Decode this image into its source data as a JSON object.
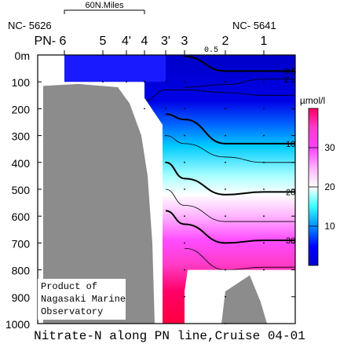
{
  "chart_data": {
    "type": "heatmap",
    "title": "Nitrate-N along PN line,Cruise 04-01",
    "subtitle": "",
    "xlabel": "",
    "ylabel": "",
    "units": "µmol/l",
    "y_axis": {
      "lim": [
        1000,
        0
      ],
      "ticks": [
        {
          "v": 0,
          "label": "0m"
        },
        {
          "v": 100,
          "label": "100"
        },
        {
          "v": 200,
          "label": "200"
        },
        {
          "v": 300,
          "label": "300"
        },
        {
          "v": 400,
          "label": "400"
        },
        {
          "v": 500,
          "label": "500"
        },
        {
          "v": 600,
          "label": "600"
        },
        {
          "v": 700,
          "label": "700"
        },
        {
          "v": 800,
          "label": "800"
        },
        {
          "v": 900,
          "label": "900"
        },
        {
          "v": 1000,
          "label": "1000"
        }
      ]
    },
    "stations": [
      {
        "label": "PN- 6",
        "depth": 90
      },
      {
        "label": "5",
        "depth": 100
      },
      {
        "label": "4'",
        "depth": 100
      },
      {
        "label": "4",
        "depth": 260
      },
      {
        "label": "3'",
        "depth": 480
      },
      {
        "label": "3",
        "depth": 900
      },
      {
        "label": "2",
        "depth": 1000
      },
      {
        "label": "1",
        "depth": 800
      }
    ],
    "station_ids": {
      "west": "NC- 5626",
      "east": "NC- 5641"
    },
    "scale_bar_label": "60N.Miles",
    "contours": [
      {
        "value": 0.5,
        "label": "0.5",
        "depths": [
          null,
          null,
          null,
          null,
          null,
          5,
          60,
          60
        ],
        "major": true
      },
      {
        "value": 2,
        "label": "2",
        "depths": [
          null,
          null,
          null,
          null,
          null,
          120,
          110,
          90
        ],
        "major": false
      },
      {
        "value": 5,
        "label": "",
        "depths": [
          null,
          null,
          null,
          170,
          130,
          130,
          140,
          150
        ],
        "major": false
      },
      {
        "value": 10,
        "label": "10",
        "depths": [
          null,
          null,
          null,
          null,
          220,
          240,
          330,
          330
        ],
        "major": true
      },
      {
        "value": 15,
        "label": "",
        "depths": [
          null,
          null,
          null,
          null,
          300,
          330,
          380,
          400
        ],
        "major": false
      },
      {
        "value": 20,
        "label": "20",
        "depths": [
          null,
          null,
          null,
          null,
          400,
          460,
          520,
          510
        ],
        "major": true
      },
      {
        "value": 25,
        "label": "",
        "depths": [
          null,
          null,
          null,
          null,
          500,
          560,
          620,
          620
        ],
        "major": false
      },
      {
        "value": 30,
        "label": "30",
        "depths": [
          null,
          null,
          null,
          null,
          580,
          630,
          700,
          690
        ],
        "major": true
      },
      {
        "value": 35,
        "label": "",
        "depths": [
          null,
          null,
          null,
          null,
          null,
          720,
          800,
          790
        ],
        "major": false
      }
    ],
    "colorbar": {
      "units_label": "µmol/l",
      "ticks": [
        {
          "v": 10,
          "label": "10"
        },
        {
          "v": 20,
          "label": "20"
        },
        {
          "v": 30,
          "label": "30"
        }
      ],
      "range": [
        0,
        40
      ],
      "colors": [
        "#0000c8",
        "#0050ff",
        "#00c8ff",
        "#96ffff",
        "#ffffff",
        "#ffb4ff",
        "#ff50ff",
        "#ff3cc8",
        "#ff0064"
      ]
    }
  },
  "credit": {
    "line1": "Product of",
    "line2": "Nagasaki Marine",
    "line3": "Observatory"
  }
}
